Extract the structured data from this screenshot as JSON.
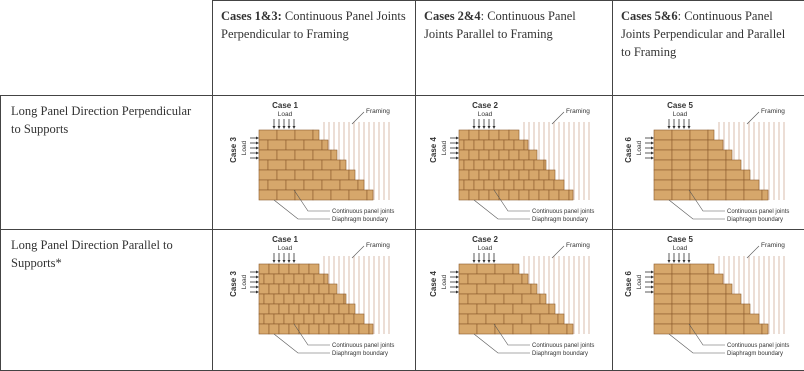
{
  "header": {
    "columns": [
      {
        "bold": "Cases 1&3:",
        "text": "Continuous Panel Joints Perpendicular to Framing"
      },
      {
        "bold": "Cases 2&4",
        "text": ": Continuous Panel Joints Parallel to Framing"
      },
      {
        "bold": "Cases 5&6",
        "text": ": Continuous Panel Joints Perpendicular and Parallel to Framing"
      }
    ]
  },
  "rows": [
    {
      "label": "Long Panel Direction Perpendicular to Supports",
      "cells": [
        {
          "top_case": "Case 1",
          "top_load": "Load",
          "side_case": "Case 3",
          "side_load": "Load",
          "framing": "Framing",
          "joints": "Continuous panel joints",
          "boundary": "Diaphragm boundary"
        },
        {
          "top_case": "Case 2",
          "top_load": "Load",
          "side_case": "Case 4",
          "side_load": "Load",
          "framing": "Framing",
          "joints": "Continuous panel joints",
          "boundary": "Diaphragm boundary"
        },
        {
          "top_case": "Case 5",
          "top_load": "Load",
          "side_case": "Case 6",
          "side_load": "Load",
          "framing": "Framing",
          "joints": "Continuous panel joints",
          "boundary": "Diaphragm boundary"
        }
      ]
    },
    {
      "label": "Long Panel Direction Parallel to Supports*",
      "cells": [
        {
          "top_case": "Case 1",
          "top_load": "Load",
          "side_case": "Case 3",
          "side_load": "Load",
          "framing": "Framing",
          "joints": "Continuous panel joints",
          "boundary": "Diaphragm boundary"
        },
        {
          "top_case": "Case 2",
          "top_load": "Load",
          "side_case": "Case 4",
          "side_load": "Load",
          "framing": "Framing",
          "joints": "Continuous panel joints",
          "boundary": "Diaphragm boundary"
        },
        {
          "top_case": "Case 5",
          "top_load": "Load",
          "side_case": "Case 6",
          "side_load": "Load",
          "framing": "Framing",
          "joints": "Continuous panel joints",
          "boundary": "Diaphragm boundary"
        }
      ]
    }
  ]
}
